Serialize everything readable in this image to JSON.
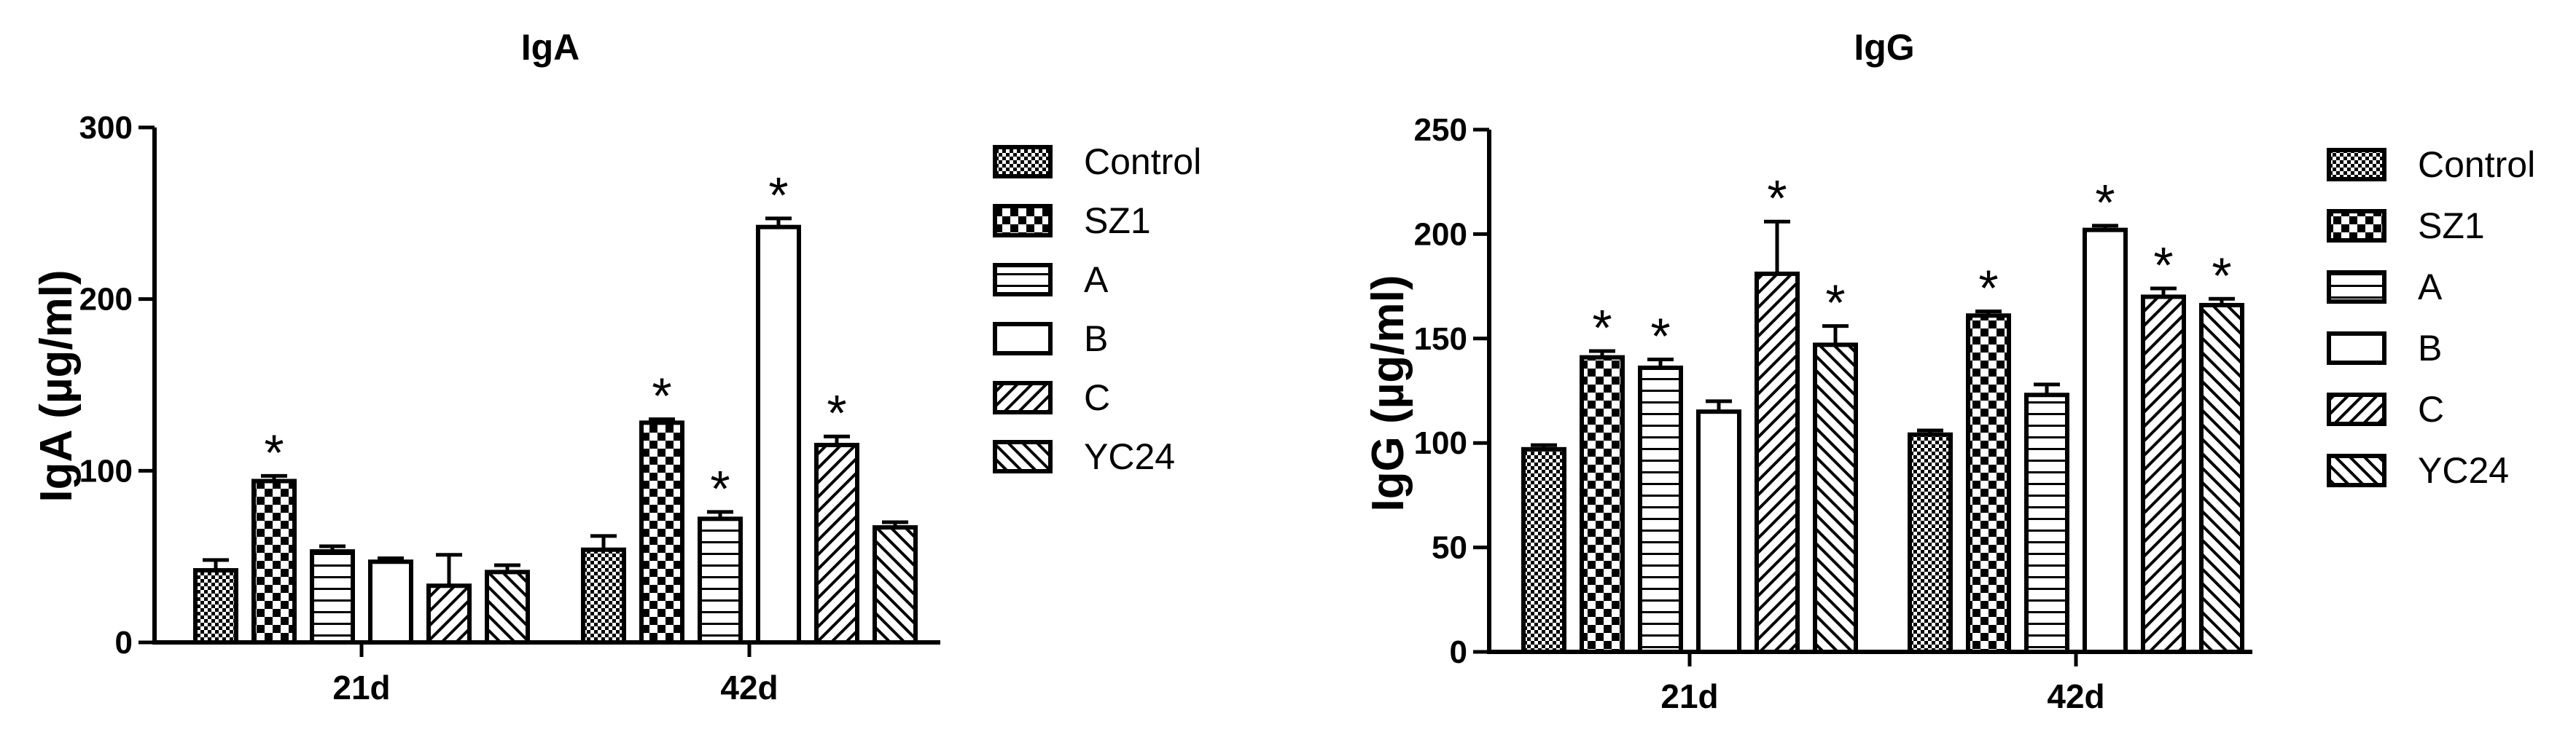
{
  "chart_data": [
    {
      "type": "bar",
      "title": "IgA",
      "xlabel": "",
      "ylabel": "IgA (µg/ml)",
      "ylim": [
        0,
        300
      ],
      "yticks": [
        0,
        100,
        200,
        300
      ],
      "categories": [
        "21d",
        "42d"
      ],
      "series": [
        {
          "name": "Control",
          "pattern": "checker-fine",
          "values": [
            42,
            54
          ],
          "errors": [
            6,
            8
          ],
          "significant": [
            false,
            false
          ]
        },
        {
          "name": "SZ1",
          "pattern": "checker-bold",
          "values": [
            94,
            128
          ],
          "errors": [
            3,
            2
          ],
          "significant": [
            true,
            true
          ]
        },
        {
          "name": "A",
          "pattern": "horizontal",
          "values": [
            53,
            72
          ],
          "errors": [
            3,
            4
          ],
          "significant": [
            false,
            true
          ]
        },
        {
          "name": "B",
          "pattern": "none",
          "values": [
            47,
            242
          ],
          "errors": [
            2,
            5
          ],
          "significant": [
            false,
            true
          ]
        },
        {
          "name": "C",
          "pattern": "diag-up",
          "values": [
            33,
            115
          ],
          "errors": [
            18,
            5
          ],
          "significant": [
            false,
            true
          ]
        },
        {
          "name": "YC24",
          "pattern": "diag-down",
          "values": [
            41,
            67
          ],
          "errors": [
            4,
            3
          ],
          "significant": [
            false,
            false
          ]
        }
      ],
      "significance_marker": "*",
      "legend_position": "right"
    },
    {
      "type": "bar",
      "title": "IgG",
      "xlabel": "",
      "ylabel": "IgG (µg/ml)",
      "ylim": [
        0,
        250
      ],
      "yticks": [
        0,
        50,
        100,
        150,
        200,
        250
      ],
      "categories": [
        "21d",
        "42d"
      ],
      "series": [
        {
          "name": "Control",
          "pattern": "checker-fine",
          "values": [
            97,
            104
          ],
          "errors": [
            2,
            2
          ],
          "significant": [
            false,
            false
          ]
        },
        {
          "name": "SZ1",
          "pattern": "checker-bold",
          "values": [
            141,
            161
          ],
          "errors": [
            3,
            2
          ],
          "significant": [
            true,
            true
          ]
        },
        {
          "name": "A",
          "pattern": "horizontal",
          "values": [
            136,
            123
          ],
          "errors": [
            4,
            5
          ],
          "significant": [
            true,
            false
          ]
        },
        {
          "name": "B",
          "pattern": "none",
          "values": [
            115,
            202
          ],
          "errors": [
            5,
            2
          ],
          "significant": [
            false,
            true
          ]
        },
        {
          "name": "C",
          "pattern": "diag-up",
          "values": [
            181,
            170
          ],
          "errors": [
            25,
            4
          ],
          "significant": [
            true,
            true
          ]
        },
        {
          "name": "YC24",
          "pattern": "diag-down",
          "values": [
            147,
            166
          ],
          "errors": [
            9,
            3
          ],
          "significant": [
            true,
            true
          ]
        }
      ],
      "significance_marker": "*",
      "legend_position": "right"
    }
  ]
}
